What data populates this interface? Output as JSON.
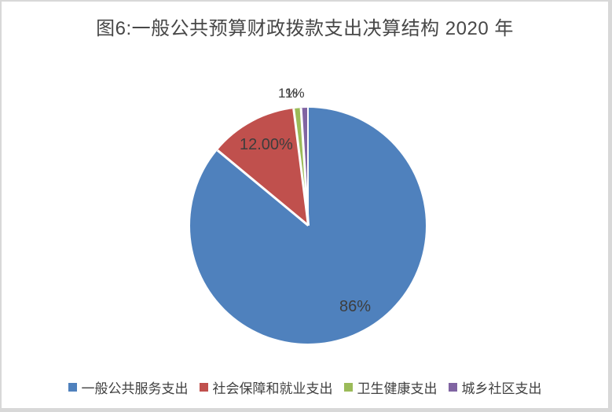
{
  "chart_data": {
    "type": "pie",
    "title": "图6:一般公共预算财政拨款支出决算结构 2020 年",
    "direction": "clockwise",
    "start_angle_deg": 0,
    "legend_position": "bottom",
    "label_color": "#3d3d3d",
    "title_color": "#474747",
    "frame_color": "#d8d8d8",
    "series": [
      {
        "name": "一般公共服务支出",
        "value": 86,
        "label": "86%",
        "color": "#4F81BD"
      },
      {
        "name": "社会保障和就业支出",
        "value": 12,
        "label": "12.00%",
        "color": "#C0504D"
      },
      {
        "name": "卫生健康支出",
        "value": 1,
        "label": "1%",
        "color": "#9BBB59"
      },
      {
        "name": "城乡社区支出",
        "value": 1,
        "label": "1%",
        "color": "#8064A2"
      }
    ]
  }
}
